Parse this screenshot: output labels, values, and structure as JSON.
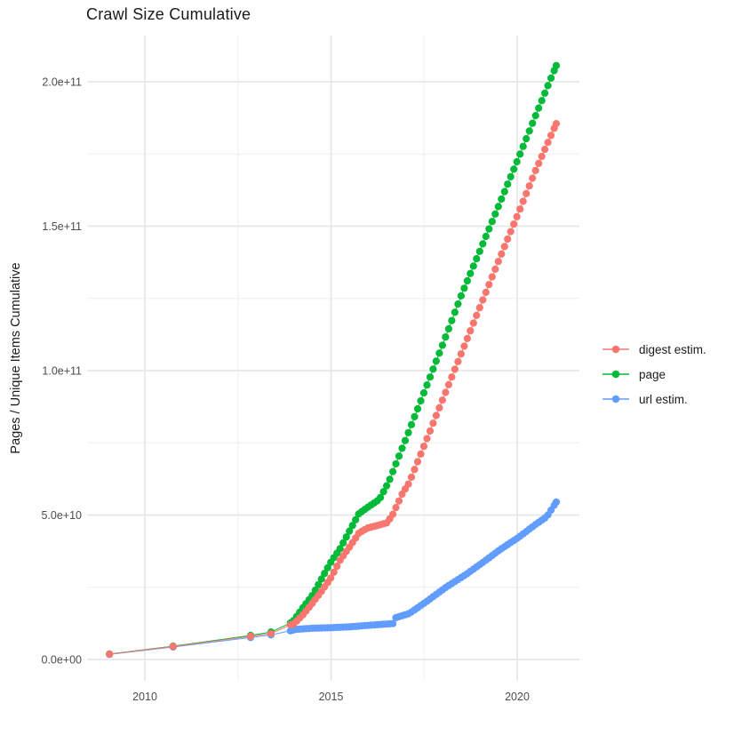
{
  "title": "Crawl Size Cumulative",
  "y_axis": {
    "label": "Pages / Unique Items Cumulative",
    "ticks": [
      {
        "value_e9": 0,
        "label": "0.0e+00"
      },
      {
        "value_e9": 50,
        "label": "5.0e+10"
      },
      {
        "value_e9": 100,
        "label": "1.0e+11"
      },
      {
        "value_e9": 150,
        "label": "1.5e+11"
      },
      {
        "value_e9": 200,
        "label": "2.0e+11"
      }
    ],
    "minor_e9": [
      25,
      75,
      125,
      175
    ]
  },
  "x_axis": {
    "ticks": [
      {
        "value": 2010,
        "label": "2010"
      },
      {
        "value": 2015,
        "label": "2015"
      },
      {
        "value": 2020,
        "label": "2020"
      }
    ],
    "minor": [
      2012.5,
      2017.5
    ]
  },
  "legend": {
    "items": [
      {
        "label": "digest estim.",
        "series": "digest-estim",
        "color": "#F8766D"
      },
      {
        "label": "page",
        "series": "page",
        "color": "#00BA38"
      },
      {
        "label": "url estim.",
        "series": "url-estim",
        "color": "#619CFF"
      }
    ]
  },
  "colors": {
    "background": "#FFFFFF",
    "grid_major": "#E7E7E7",
    "grid_minor": "#F1F1F1",
    "tick_text": "#4D4D4D",
    "text": "#1B1B1B",
    "digest": "#F8766D",
    "page": "#00BA38",
    "url": "#619CFF"
  },
  "chart_data": {
    "type": "scatter",
    "title": "Crawl Size Cumulative",
    "xlabel": "",
    "ylabel": "Pages / Unique Items Cumulative",
    "x_tick_years": [
      2010,
      2015,
      2020
    ],
    "y_tick_values": [
      0,
      50000000000.0,
      100000000000.0,
      150000000000.0,
      200000000000.0
    ],
    "x_range_years": [
      2009.05,
      2021.05
    ],
    "y_range": [
      0,
      206000000000.0
    ],
    "grid": true,
    "legend_position": "right",
    "units_note": "point values below are in billions (1e9) of pages / unique items, cumulative per crawl; early crawls sparse, then ~monthly crawls sampled from anchor readings",
    "monthly_step_years": 0.0833333,
    "series": [
      {
        "name": "digest estim.",
        "key": "digest-estim",
        "color": "#F8766D",
        "draw_order": 3,
        "sparse": [
          [
            2009.05,
            1.85
          ],
          [
            2010.76,
            4.5
          ],
          [
            2012.84,
            8.0
          ],
          [
            2013.39,
            9.0
          ]
        ],
        "anchors": [
          [
            2013.91,
            12.0
          ],
          [
            2014.0,
            12.3
          ],
          [
            2014.25,
            15.5
          ],
          [
            2014.5,
            19.5
          ],
          [
            2014.75,
            23.7
          ],
          [
            2015.0,
            28.3
          ],
          [
            2015.25,
            34.5
          ],
          [
            2015.5,
            39.0
          ],
          [
            2015.75,
            43.8
          ],
          [
            2016.0,
            45.6
          ],
          [
            2016.2,
            46.2
          ],
          [
            2016.5,
            47.3
          ],
          [
            2016.65,
            50.0
          ],
          [
            2016.92,
            57.5
          ],
          [
            2017.1,
            61.2
          ],
          [
            2017.5,
            74.0
          ],
          [
            2018.0,
            90.0
          ],
          [
            2018.5,
            106.0
          ],
          [
            2019.0,
            122.0
          ],
          [
            2019.5,
            138.0
          ],
          [
            2020.0,
            153.5
          ],
          [
            2020.5,
            169.5
          ],
          [
            2021.05,
            185.5
          ]
        ]
      },
      {
        "name": "page",
        "key": "page",
        "color": "#00BA38",
        "draw_order": 2,
        "sparse": [
          [
            2009.05,
            1.9
          ],
          [
            2010.76,
            4.6
          ],
          [
            2012.84,
            8.3
          ],
          [
            2013.39,
            9.5
          ]
        ],
        "anchors": [
          [
            2013.91,
            12.6
          ],
          [
            2014.0,
            13.5
          ],
          [
            2014.25,
            18.0
          ],
          [
            2014.5,
            22.2
          ],
          [
            2014.75,
            28.0
          ],
          [
            2015.0,
            33.8
          ],
          [
            2015.25,
            38.5
          ],
          [
            2015.5,
            44.6
          ],
          [
            2015.75,
            50.5
          ],
          [
            2016.0,
            52.8
          ],
          [
            2016.3,
            55.4
          ],
          [
            2016.55,
            61.5
          ],
          [
            2017.0,
            76.0
          ],
          [
            2017.5,
            92.5
          ],
          [
            2018.0,
            109.0
          ],
          [
            2018.52,
            126.8
          ],
          [
            2019.0,
            141.5
          ],
          [
            2019.5,
            157.0
          ],
          [
            2020.0,
            172.5
          ],
          [
            2020.5,
            188.5
          ],
          [
            2021.05,
            205.6
          ]
        ]
      },
      {
        "name": "url estim.",
        "key": "url-estim",
        "color": "#619CFF",
        "draw_order": 1,
        "sparse": [
          [
            2009.05,
            1.75
          ],
          [
            2010.76,
            4.3
          ],
          [
            2012.84,
            7.6
          ],
          [
            2013.39,
            8.5
          ]
        ],
        "anchors": [
          [
            2013.91,
            9.9
          ],
          [
            2014.05,
            10.4
          ],
          [
            2014.5,
            10.8
          ],
          [
            2015.0,
            11.0
          ],
          [
            2015.5,
            11.3
          ],
          [
            2016.0,
            11.8
          ],
          [
            2016.66,
            12.4
          ],
          [
            2016.7,
            14.3
          ],
          [
            2017.1,
            15.9
          ],
          [
            2017.56,
            20.0
          ],
          [
            2018.11,
            25.2
          ],
          [
            2018.6,
            29.2
          ],
          [
            2019.07,
            33.5
          ],
          [
            2019.55,
            38.1
          ],
          [
            2020.03,
            42.2
          ],
          [
            2020.5,
            46.8
          ],
          [
            2020.8,
            49.5
          ],
          [
            2021.05,
            54.5
          ]
        ]
      }
    ]
  }
}
